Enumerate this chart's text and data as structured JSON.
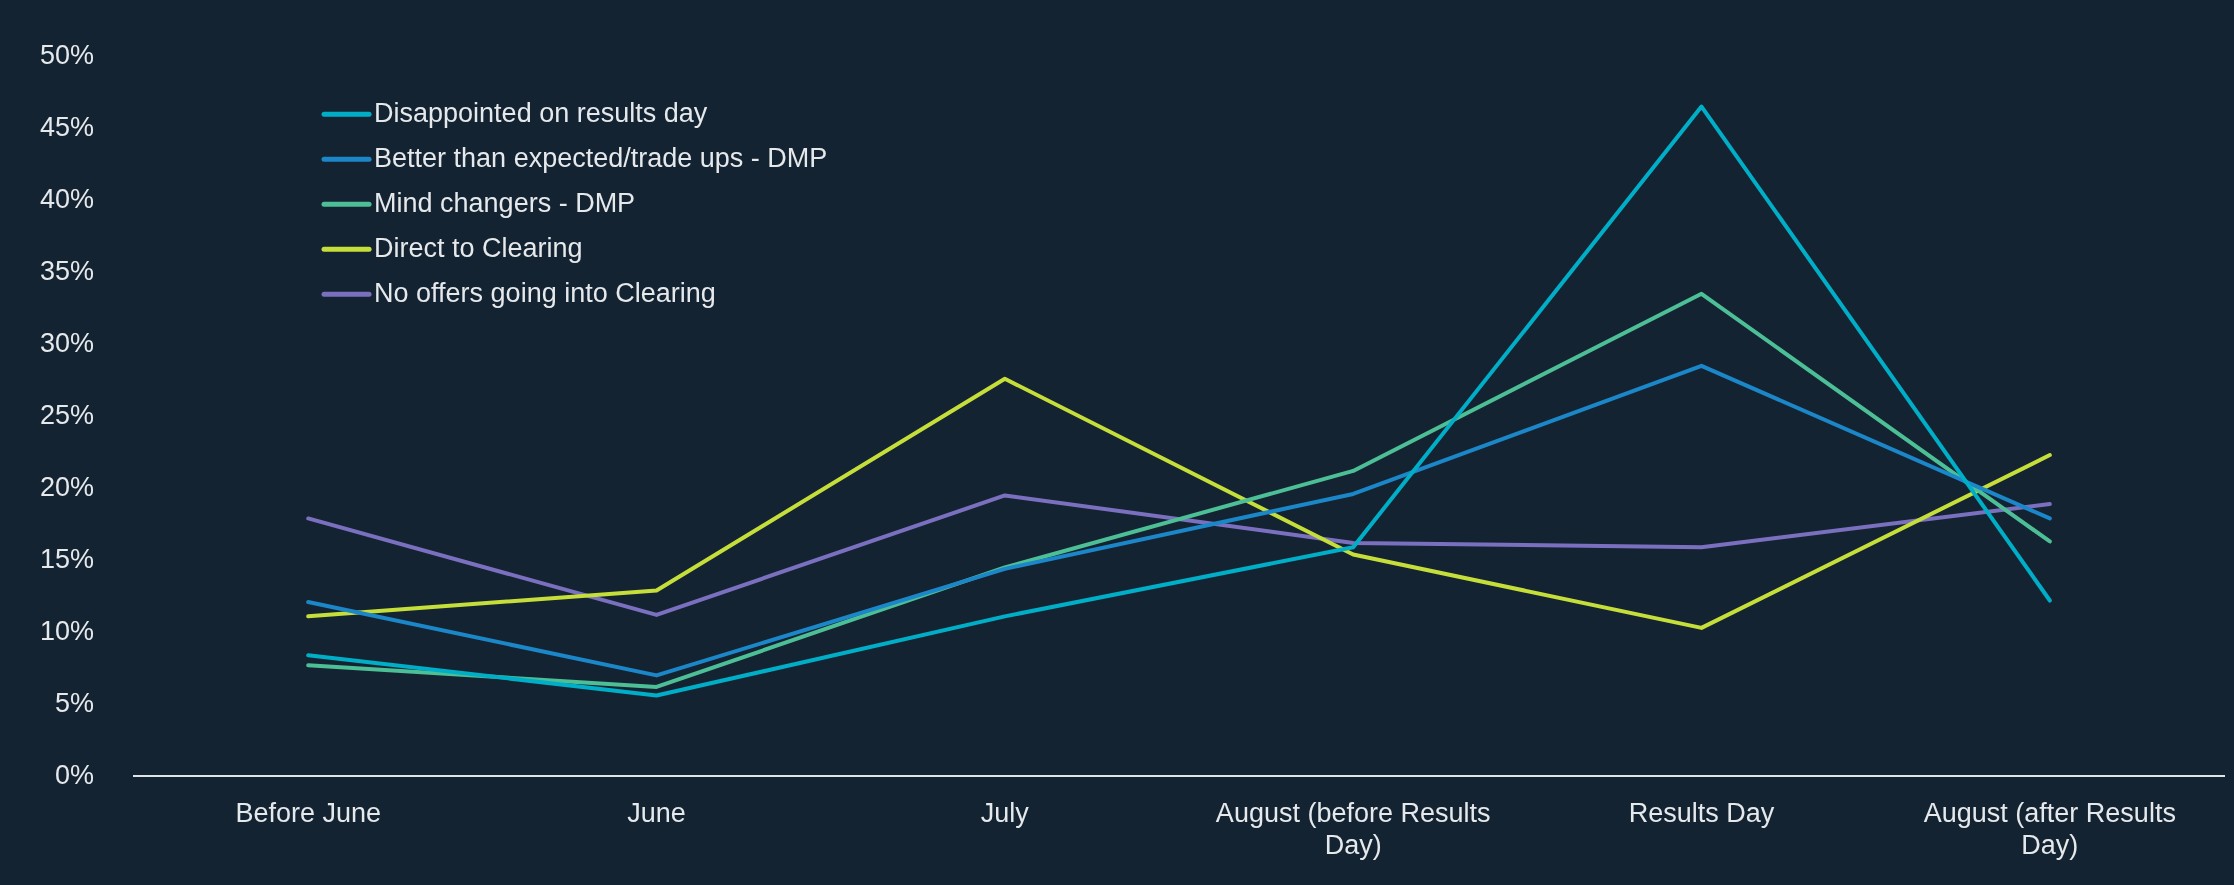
{
  "chart_data": {
    "type": "line",
    "categories": [
      "Before June",
      "June",
      "July",
      "August (before Results Day)",
      "Results Day",
      "August (after Results Day)"
    ],
    "series": [
      {
        "name": "Disappointed on results day",
        "color": "#00aec7",
        "values": [
          8.4,
          5.6,
          11.1,
          15.9,
          46.5,
          12.2
        ]
      },
      {
        "name": "Better than expected/trade ups - DMP",
        "color": "#1b87c9",
        "values": [
          12.1,
          7.0,
          14.4,
          19.6,
          28.5,
          17.9
        ]
      },
      {
        "name": "Mind changers - DMP",
        "color": "#4dbf96",
        "values": [
          7.7,
          6.2,
          14.5,
          21.2,
          33.5,
          16.3
        ]
      },
      {
        "name": "Direct to Clearing",
        "color": "#c5de3a",
        "values": [
          11.1,
          12.9,
          27.6,
          15.4,
          10.3,
          22.3
        ]
      },
      {
        "name": "No offers going into Clearing",
        "color": "#7b70c0",
        "values": [
          17.9,
          11.2,
          19.5,
          16.2,
          15.9,
          18.9
        ]
      }
    ],
    "ylim": [
      0,
      50
    ],
    "yticks": [
      {
        "value": 0,
        "label": "0%"
      },
      {
        "value": 5,
        "label": "5%"
      },
      {
        "value": 10,
        "label": "10%"
      },
      {
        "value": 15,
        "label": "15%"
      },
      {
        "value": 20,
        "label": "20%"
      },
      {
        "value": 25,
        "label": "25%"
      },
      {
        "value": 30,
        "label": "30%"
      },
      {
        "value": 35,
        "label": "35%"
      },
      {
        "value": 40,
        "label": "40%"
      },
      {
        "value": 45,
        "label": "45%"
      },
      {
        "value": 50,
        "label": "50%"
      }
    ],
    "grid": false,
    "legend": "top left",
    "marker": "none",
    "line_style": "solid"
  }
}
